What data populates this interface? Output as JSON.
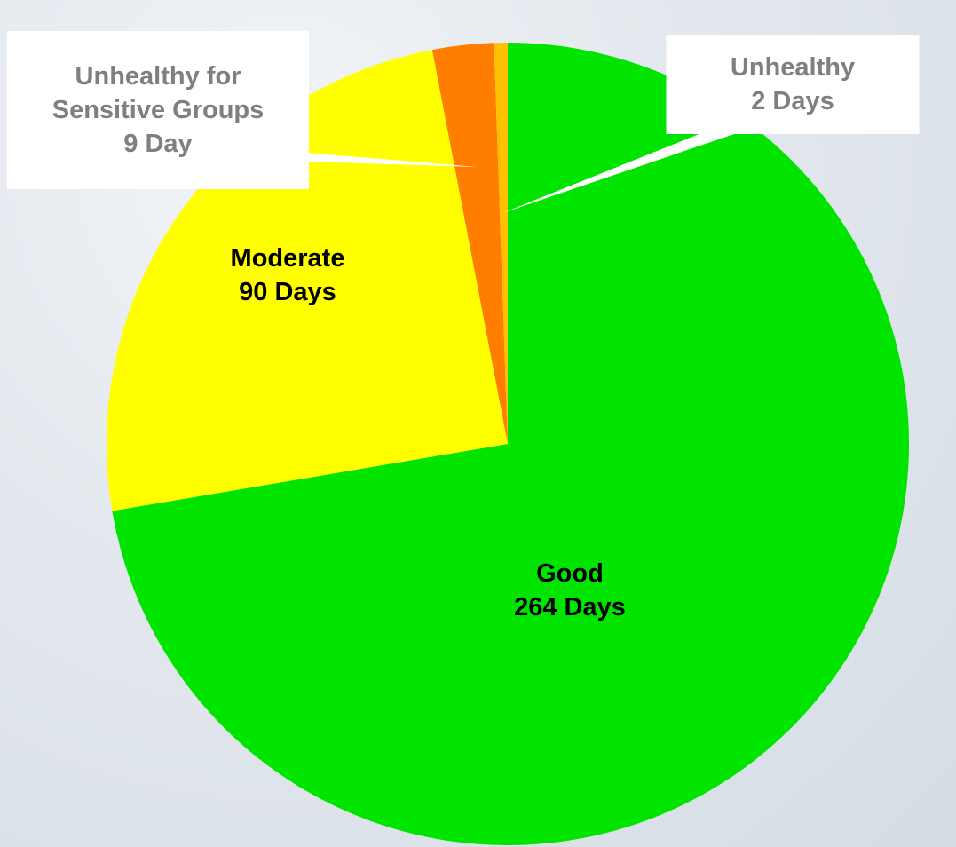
{
  "chart_data": {
    "type": "pie",
    "categories": [
      "Good",
      "Moderate",
      "Unhealthy for Sensitive Groups",
      "Unhealthy"
    ],
    "values": [
      264,
      90,
      9,
      2
    ],
    "value_labels": [
      "264 Days",
      "90 Days",
      "9 Day",
      "2 Days"
    ],
    "colors": [
      "#00e400",
      "#ffff00",
      "#ff7e00",
      "#ffc000"
    ]
  }
}
